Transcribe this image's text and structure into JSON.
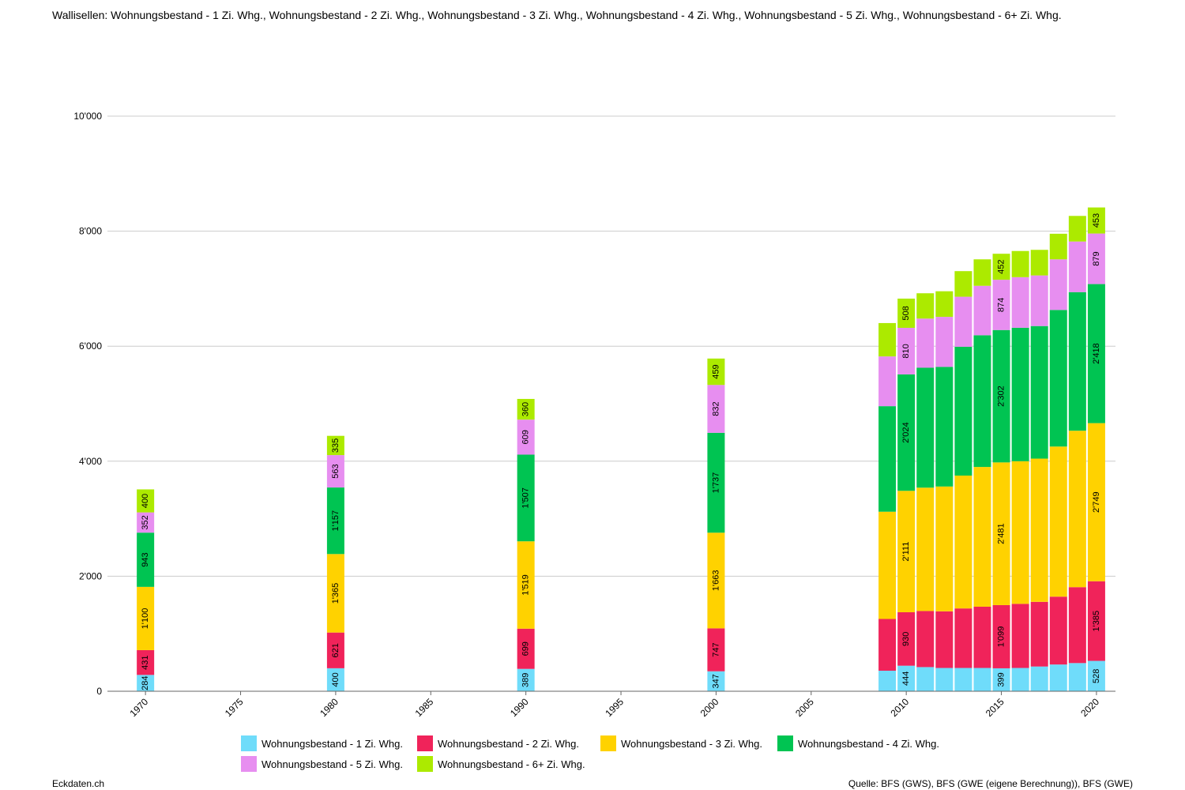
{
  "title": "Wallisellen: Wohnungsbestand - 1 Zi. Whg., Wohnungsbestand - 2 Zi. Whg., Wohnungsbestand - 3 Zi. Whg., Wohnungsbestand - 4 Zi. Whg., Wohnungsbestand - 5 Zi. Whg., Wohnungsbestand - 6+ Zi. Whg.",
  "footer_left": "Eckdaten.ch",
  "footer_right": "Quelle: BFS (GWS), BFS (GWE (eigene Berechnung)), BFS (GWE)",
  "chart_data": {
    "type": "bar",
    "stacked": true,
    "xlim": [
      1968,
      2021
    ],
    "ylim": [
      0,
      10000
    ],
    "x_ticks": [
      "1970",
      "1975",
      "1980",
      "1985",
      "1990",
      "1995",
      "2000",
      "2005",
      "2010",
      "2015",
      "2020"
    ],
    "y_ticks": [
      "0",
      "2'000",
      "4'000",
      "6'000",
      "8'000",
      "10'000"
    ],
    "grid": true,
    "legend_position": "bottom",
    "x": [
      1970,
      1980,
      1990,
      2000,
      2009,
      2010,
      2011,
      2012,
      2013,
      2014,
      2015,
      2016,
      2017,
      2018,
      2019,
      2020
    ],
    "series": [
      {
        "name": "Wohnungsbestand - 1 Zi. Whg.",
        "color": "#6fdcfa",
        "values": [
          284,
          400,
          389,
          347,
          357,
          444,
          420,
          405,
          405,
          405,
          399,
          405,
          430,
          465,
          490,
          528
        ]
      },
      {
        "name": "Wohnungsbestand - 2 Zi. Whg.",
        "color": "#f0235a",
        "values": [
          431,
          621,
          699,
          747,
          900,
          930,
          975,
          985,
          1035,
          1065,
          1099,
          1115,
          1125,
          1180,
          1320,
          1385
        ]
      },
      {
        "name": "Wohnungsbestand - 3 Zi. Whg.",
        "color": "#ffd200",
        "values": [
          1100,
          1365,
          1519,
          1663,
          1865,
          2111,
          2145,
          2170,
          2310,
          2430,
          2481,
          2480,
          2490,
          2610,
          2720,
          2749
        ]
      },
      {
        "name": "Wohnungsbestand - 4 Zi. Whg.",
        "color": "#00c452",
        "values": [
          943,
          1157,
          1507,
          1737,
          1835,
          2024,
          2085,
          2080,
          2240,
          2290,
          2302,
          2320,
          2305,
          2375,
          2410,
          2418
        ]
      },
      {
        "name": "Wohnungsbestand - 5 Zi. Whg.",
        "color": "#e78ef0",
        "values": [
          352,
          563,
          609,
          832,
          865,
          810,
          855,
          870,
          870,
          860,
          874,
          880,
          880,
          880,
          880,
          879
        ]
      },
      {
        "name": "Wohnungsbestand - 6+ Zi. Whg.",
        "color": "#acea00",
        "values": [
          400,
          335,
          360,
          459,
          580,
          508,
          440,
          445,
          445,
          460,
          452,
          455,
          445,
          445,
          445,
          453
        ]
      }
    ],
    "data_labels": {
      "1970": [
        "284",
        "431",
        "1'100",
        "943",
        "352",
        "400"
      ],
      "1980": [
        "400",
        "621",
        "1'365",
        "1'157",
        "563",
        "335"
      ],
      "1990": [
        "389",
        "699",
        "1'519",
        "1'507",
        "609",
        "360"
      ],
      "2000": [
        "347",
        "747",
        "1'663",
        "1'737",
        "832",
        "459"
      ],
      "2010": [
        "444",
        "930",
        "2'111",
        "2'024",
        "810",
        "508"
      ],
      "2015": [
        "399",
        "1'099",
        "2'481",
        "2'302",
        "874",
        "452"
      ],
      "2020": [
        "528",
        "1'385",
        "2'749",
        "2'418",
        "879",
        "453"
      ]
    }
  }
}
